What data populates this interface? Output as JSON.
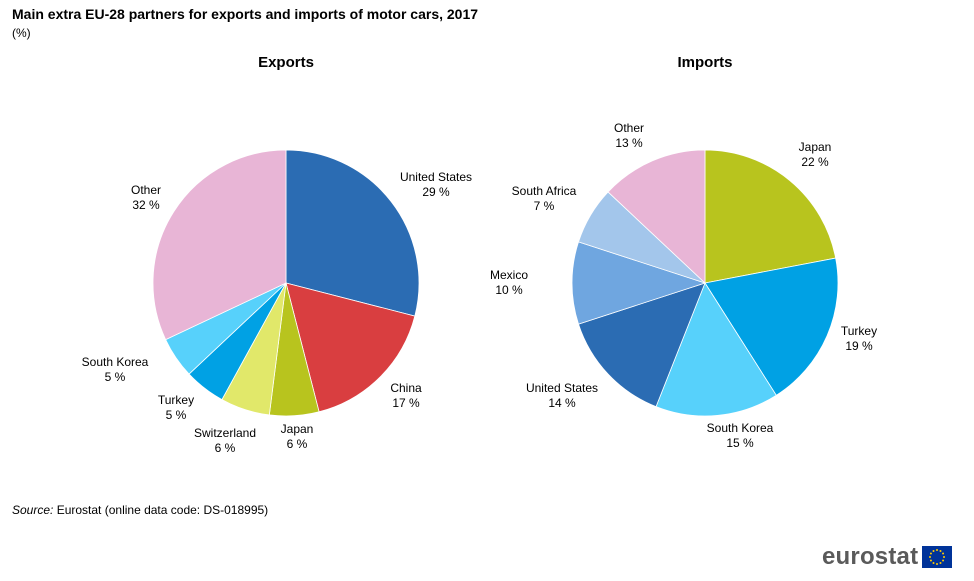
{
  "header": {
    "title": "Main extra EU-28 partners for exports and imports of motor cars, 2017",
    "unit": "(%)"
  },
  "chart_data": [
    {
      "type": "pie",
      "title": "Exports",
      "unit": "%",
      "slices": [
        {
          "label": "United States",
          "value": 29,
          "text": "29 %",
          "color": "#2b6cb3"
        },
        {
          "label": "China",
          "value": 17,
          "text": "17 %",
          "color": "#d93e40"
        },
        {
          "label": "Japan",
          "value": 6,
          "text": "6 %",
          "color": "#b8c41e"
        },
        {
          "label": "Switzerland",
          "value": 6,
          "text": "6 %",
          "color": "#e1e86a"
        },
        {
          "label": "Turkey",
          "value": 5,
          "text": "5 %",
          "color": "#00a1e4"
        },
        {
          "label": "South Korea",
          "value": 5,
          "text": "5 %",
          "color": "#57d1fb"
        },
        {
          "label": "Other",
          "value": 32,
          "text": "32 %",
          "color": "#e8b5d6"
        }
      ]
    },
    {
      "type": "pie",
      "title": "Imports",
      "unit": "%",
      "slices": [
        {
          "label": "Japan",
          "value": 22,
          "text": "22 %",
          "color": "#b8c41e"
        },
        {
          "label": "Turkey",
          "value": 19,
          "text": "19 %",
          "color": "#00a1e4"
        },
        {
          "label": "South Korea",
          "value": 15,
          "text": "15 %",
          "color": "#57d1fb"
        },
        {
          "label": "United States",
          "value": 14,
          "text": "14 %",
          "color": "#2b6cb3"
        },
        {
          "label": "Mexico",
          "value": 10,
          "text": "10 %",
          "color": "#6fa6e0"
        },
        {
          "label": "South Africa",
          "value": 7,
          "text": "7 %",
          "color": "#a3c6eb"
        },
        {
          "label": "Other",
          "value": 13,
          "text": "13 %",
          "color": "#e8b5d6"
        }
      ]
    }
  ],
  "footer": {
    "source_label": "Source:",
    "source_text": "Eurostat (online data code: DS-018995)",
    "logo_text": "eurostat",
    "flag_color": "#003399",
    "star_color": "#ffcc00"
  }
}
